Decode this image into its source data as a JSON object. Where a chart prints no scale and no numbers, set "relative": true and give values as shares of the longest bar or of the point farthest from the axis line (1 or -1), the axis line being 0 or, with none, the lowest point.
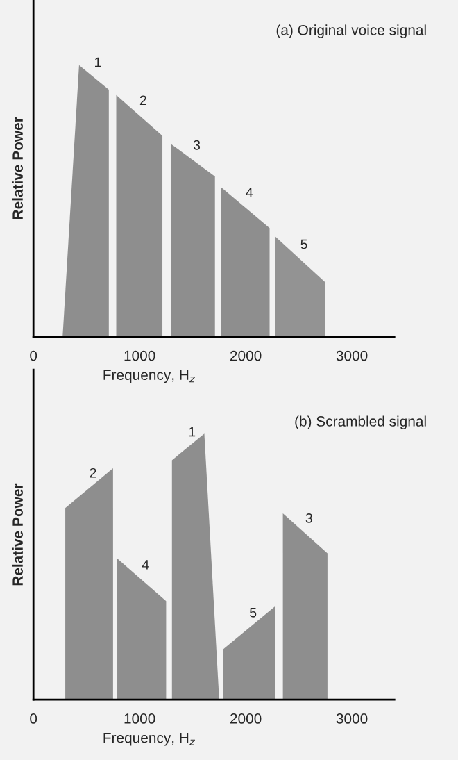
{
  "chart_data": [
    {
      "type": "area",
      "title": "(a) Original voice signal",
      "xlabel": "Frequency, H$_{z}$",
      "ylabel": "Relative Power",
      "relative": true,
      "xlim": [
        0,
        3400
      ],
      "xticks": [
        0,
        1000,
        2000,
        3000
      ],
      "tick_labels": "x",
      "grid": false,
      "series": [
        {
          "name": "1",
          "color": "#8e8e8e",
          "x": [
            275,
            430,
            710
          ],
          "values": [
            0,
            1,
            0.91
          ]
        },
        {
          "name": "2",
          "color": "#8e8e8e",
          "x": [
            780,
            1215
          ],
          "values": [
            0.89,
            0.74
          ]
        },
        {
          "name": "3",
          "color": "#8e8e8e",
          "x": [
            1295,
            1710
          ],
          "values": [
            0.71,
            0.59
          ]
        },
        {
          "name": "4",
          "color": "#8e8e8e",
          "x": [
            1770,
            2225
          ],
          "values": [
            0.55,
            0.4
          ]
        },
        {
          "name": "5",
          "color": "#939393",
          "x": [
            2275,
            2750
          ],
          "values": [
            0.37,
            0.2
          ]
        }
      ]
    },
    {
      "type": "area",
      "title": "(b) Scrambled signal",
      "xlabel": "Frequency, H$_{z}$",
      "ylabel": "Relative Power",
      "relative": true,
      "xlim": [
        0,
        3400
      ],
      "xticks": [
        0,
        1000,
        2000,
        3000
      ],
      "tick_labels": "x",
      "grid": false,
      "series": [
        {
          "name": "2",
          "color": "#8e8e8e",
          "x": [
            300,
            750
          ],
          "values": [
            0.72,
            0.87
          ]
        },
        {
          "name": "4",
          "color": "#8e8e8e",
          "x": [
            790,
            1250
          ],
          "values": [
            0.53,
            0.37
          ]
        },
        {
          "name": "1",
          "color": "#8e8e8e",
          "x": [
            1305,
            1610,
            1750
          ],
          "values": [
            0.9,
            1,
            0
          ]
        },
        {
          "name": "5",
          "color": "#8e8e8e",
          "x": [
            1790,
            2275
          ],
          "values": [
            0.19,
            0.35
          ]
        },
        {
          "name": "3",
          "color": "#8e8e8e",
          "x": [
            2350,
            2770
          ],
          "values": [
            0.7,
            0.55
          ]
        }
      ]
    }
  ]
}
